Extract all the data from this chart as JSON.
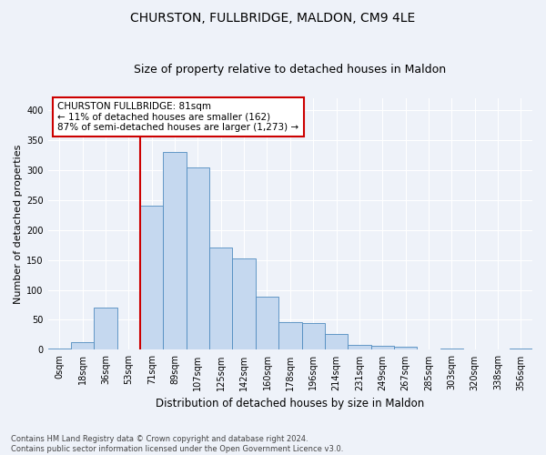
{
  "title_line1": "CHURSTON, FULLBRIDGE, MALDON, CM9 4LE",
  "title_line2": "Size of property relative to detached houses in Maldon",
  "xlabel": "Distribution of detached houses by size in Maldon",
  "ylabel": "Number of detached properties",
  "bin_labels": [
    "0sqm",
    "18sqm",
    "36sqm",
    "53sqm",
    "71sqm",
    "89sqm",
    "107sqm",
    "125sqm",
    "142sqm",
    "160sqm",
    "178sqm",
    "196sqm",
    "214sqm",
    "231sqm",
    "249sqm",
    "267sqm",
    "285sqm",
    "303sqm",
    "320sqm",
    "338sqm",
    "356sqm"
  ],
  "bar_heights": [
    2,
    13,
    70,
    0,
    240,
    330,
    305,
    170,
    152,
    88,
    46,
    45,
    27,
    8,
    6,
    5,
    0,
    2,
    0,
    0,
    2
  ],
  "bar_color": "#c5d8ef",
  "bar_edge_color": "#4f8bbf",
  "vline_color": "#cc0000",
  "vline_label_idx": 4,
  "annotation_text": "CHURSTON FULLBRIDGE: 81sqm\n← 11% of detached houses are smaller (162)\n87% of semi-detached houses are larger (1,273) →",
  "annotation_box_color": "#ffffff",
  "annotation_box_edge": "#cc0000",
  "ylim": [
    0,
    420
  ],
  "yticks": [
    0,
    50,
    100,
    150,
    200,
    250,
    300,
    350,
    400
  ],
  "footer_text": "Contains HM Land Registry data © Crown copyright and database right 2024.\nContains public sector information licensed under the Open Government Licence v3.0.",
  "background_color": "#eef2f9",
  "plot_bg_color": "#eef2f9",
  "title_fontsize": 10,
  "subtitle_fontsize": 9,
  "ylabel_fontsize": 8,
  "xlabel_fontsize": 8.5,
  "tick_fontsize": 7,
  "annotation_fontsize": 7.5,
  "footer_fontsize": 6
}
